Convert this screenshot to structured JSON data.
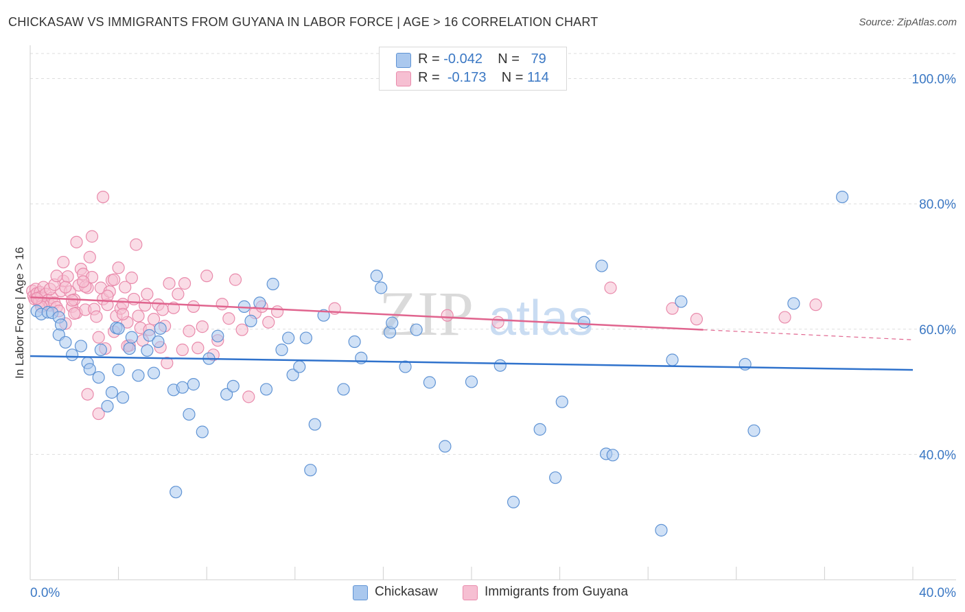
{
  "header": {
    "title": "CHICKASAW VS IMMIGRANTS FROM GUYANA IN LABOR FORCE | AGE > 16 CORRELATION CHART",
    "source": "Source: ZipAtlas.com"
  },
  "legend": {
    "rows": [
      {
        "r_label": "R =",
        "r_value": "-0.042",
        "n_label": "N =",
        "n_value": "79"
      },
      {
        "r_label": "R =",
        "r_value": "-0.173",
        "n_label": "N =",
        "n_value": "114"
      }
    ]
  },
  "watermark": {
    "zip": "ZIP",
    "atlas": "atlas"
  },
  "colors": {
    "blue_fill": "#aac8ee",
    "blue_stroke": "#5f93d4",
    "blue_line": "#2f72cc",
    "pink_fill": "#f6bfd2",
    "pink_stroke": "#e98aab",
    "pink_line": "#e0648e",
    "axis_text": "#3b78c4",
    "grid": "#dddddd"
  },
  "chart_data": {
    "type": "scatter",
    "title": "CHICKASAW VS IMMIGRANTS FROM GUYANA IN LABOR FORCE | AGE > 16 CORRELATION CHART",
    "xlabel": "",
    "ylabel": "In Labor Force | Age > 16",
    "xlim": [
      0,
      40
    ],
    "ylim": [
      20,
      104
    ],
    "x_tick_labels": [
      "0.0%",
      "40.0%"
    ],
    "y_ticks": [
      40,
      60,
      80,
      100
    ],
    "y_tick_labels": [
      "40.0%",
      "60.0%",
      "80.0%",
      "100.0%"
    ],
    "grid": true,
    "legend_position": "top-center",
    "series": [
      {
        "name": "Chickasaw",
        "color": "#5f93d4",
        "trend": {
          "x": [
            0,
            40
          ],
          "y": [
            55.7,
            53.5
          ]
        },
        "points": [
          [
            0.3,
            62.9
          ],
          [
            0.5,
            62.4
          ],
          [
            0.8,
            62.7
          ],
          [
            1.0,
            62.6
          ],
          [
            1.3,
            61.9
          ],
          [
            1.4,
            60.7
          ],
          [
            1.3,
            59.1
          ],
          [
            1.6,
            57.9
          ],
          [
            1.9,
            55.9
          ],
          [
            2.3,
            57.3
          ],
          [
            2.6,
            54.6
          ],
          [
            2.7,
            53.6
          ],
          [
            3.1,
            52.3
          ],
          [
            3.2,
            56.7
          ],
          [
            3.5,
            47.7
          ],
          [
            3.7,
            49.9
          ],
          [
            3.9,
            60.2
          ],
          [
            4.0,
            60.1
          ],
          [
            4.0,
            53.5
          ],
          [
            4.2,
            49.1
          ],
          [
            4.5,
            56.9
          ],
          [
            4.6,
            58.7
          ],
          [
            4.9,
            52.6
          ],
          [
            5.3,
            56.6
          ],
          [
            5.4,
            59.0
          ],
          [
            5.6,
            53.0
          ],
          [
            5.8,
            58.0
          ],
          [
            5.9,
            60.1
          ],
          [
            6.5,
            50.3
          ],
          [
            6.9,
            50.7
          ],
          [
            7.2,
            46.4
          ],
          [
            7.4,
            51.2
          ],
          [
            7.8,
            43.6
          ],
          [
            8.1,
            55.3
          ],
          [
            8.5,
            58.9
          ],
          [
            8.9,
            49.6
          ],
          [
            9.2,
            50.9
          ],
          [
            9.7,
            63.6
          ],
          [
            10.0,
            61.3
          ],
          [
            10.4,
            64.2
          ],
          [
            10.7,
            50.4
          ],
          [
            11.0,
            67.2
          ],
          [
            11.4,
            56.7
          ],
          [
            11.9,
            52.7
          ],
          [
            12.2,
            54.0
          ],
          [
            12.5,
            58.6
          ],
          [
            12.9,
            44.8
          ],
          [
            13.3,
            62.2
          ],
          [
            14.2,
            50.4
          ],
          [
            14.7,
            58.0
          ],
          [
            15.0,
            55.4
          ],
          [
            15.7,
            68.5
          ],
          [
            15.9,
            66.6
          ],
          [
            16.3,
            59.5
          ],
          [
            16.4,
            61.0
          ],
          [
            17.0,
            54.0
          ],
          [
            17.5,
            59.9
          ],
          [
            18.1,
            51.5
          ],
          [
            18.8,
            41.3
          ],
          [
            20.0,
            51.6
          ],
          [
            21.3,
            54.2
          ],
          [
            21.9,
            32.4
          ],
          [
            23.1,
            44.0
          ],
          [
            23.8,
            36.3
          ],
          [
            24.1,
            48.4
          ],
          [
            25.9,
            70.1
          ],
          [
            25.1,
            61.1
          ],
          [
            26.1,
            40.1
          ],
          [
            26.4,
            39.9
          ],
          [
            28.6,
            27.9
          ],
          [
            29.1,
            55.1
          ],
          [
            29.5,
            64.4
          ],
          [
            32.4,
            54.4
          ],
          [
            32.8,
            43.8
          ],
          [
            34.6,
            64.1
          ],
          [
            36.8,
            81.1
          ],
          [
            11.7,
            58.6
          ],
          [
            12.7,
            37.5
          ],
          [
            6.6,
            34.0
          ]
        ]
      },
      {
        "name": "Immigrants from Guyana",
        "color": "#e98aab",
        "trend": {
          "x": [
            0,
            30.5
          ],
          "y": [
            65.1,
            59.9
          ]
        },
        "trend_dashed": {
          "x": [
            30.5,
            40
          ],
          "y": [
            59.9,
            58.3
          ]
        },
        "points": [
          [
            0.1,
            66.1
          ],
          [
            0.15,
            65.3
          ],
          [
            0.2,
            64.8
          ],
          [
            0.25,
            66.4
          ],
          [
            0.3,
            65.7
          ],
          [
            0.35,
            65.0
          ],
          [
            0.4,
            64.4
          ],
          [
            0.45,
            65.9
          ],
          [
            0.5,
            65.2
          ],
          [
            0.55,
            64.1
          ],
          [
            0.6,
            66.7
          ],
          [
            0.7,
            65.6
          ],
          [
            0.8,
            64.6
          ],
          [
            0.9,
            63.8
          ],
          [
            1.0,
            65.0
          ],
          [
            1.1,
            64.2
          ],
          [
            1.2,
            63.5
          ],
          [
            1.3,
            62.9
          ],
          [
            1.4,
            66.1
          ],
          [
            1.5,
            67.7
          ],
          [
            1.6,
            60.9
          ],
          [
            1.7,
            68.4
          ],
          [
            1.8,
            66.0
          ],
          [
            1.9,
            63.6
          ],
          [
            2.0,
            64.7
          ],
          [
            2.1,
            62.6
          ],
          [
            2.2,
            67.0
          ],
          [
            2.3,
            69.6
          ],
          [
            2.4,
            68.8
          ],
          [
            2.5,
            63.1
          ],
          [
            2.6,
            66.6
          ],
          [
            2.7,
            71.5
          ],
          [
            2.8,
            74.8
          ],
          [
            2.9,
            63.2
          ],
          [
            3.0,
            62.0
          ],
          [
            3.1,
            58.7
          ],
          [
            3.2,
            66.6
          ],
          [
            3.3,
            64.8
          ],
          [
            3.4,
            56.9
          ],
          [
            3.5,
            63.9
          ],
          [
            3.6,
            66.0
          ],
          [
            3.7,
            67.8
          ],
          [
            3.8,
            59.6
          ],
          [
            3.9,
            62.1
          ],
          [
            4.0,
            69.8
          ],
          [
            4.1,
            63.3
          ],
          [
            4.2,
            64.0
          ],
          [
            4.3,
            66.7
          ],
          [
            4.4,
            61.1
          ],
          [
            4.5,
            57.4
          ],
          [
            4.6,
            68.2
          ],
          [
            4.7,
            64.8
          ],
          [
            4.8,
            73.5
          ],
          [
            4.9,
            62.1
          ],
          [
            5.0,
            60.2
          ],
          [
            5.1,
            58.2
          ],
          [
            5.2,
            63.8
          ],
          [
            5.3,
            65.6
          ],
          [
            5.4,
            59.9
          ],
          [
            5.6,
            61.6
          ],
          [
            5.8,
            63.9
          ],
          [
            6.0,
            63.1
          ],
          [
            6.1,
            60.5
          ],
          [
            6.3,
            67.3
          ],
          [
            6.5,
            63.4
          ],
          [
            6.7,
            65.6
          ],
          [
            6.9,
            56.7
          ],
          [
            7.0,
            67.3
          ],
          [
            7.2,
            59.7
          ],
          [
            7.4,
            63.6
          ],
          [
            7.6,
            57.0
          ],
          [
            7.8,
            60.4
          ],
          [
            8.0,
            68.5
          ],
          [
            8.3,
            55.9
          ],
          [
            8.5,
            58.2
          ],
          [
            8.7,
            64.0
          ],
          [
            9.0,
            61.7
          ],
          [
            9.3,
            67.9
          ],
          [
            9.6,
            59.9
          ],
          [
            9.9,
            49.2
          ],
          [
            10.2,
            62.6
          ],
          [
            10.5,
            63.6
          ],
          [
            10.8,
            61.1
          ],
          [
            11.2,
            62.8
          ],
          [
            3.3,
            81.1
          ],
          [
            1.5,
            70.7
          ],
          [
            2.1,
            73.9
          ],
          [
            2.5,
            66.8
          ],
          [
            3.8,
            67.9
          ],
          [
            4.2,
            62.4
          ],
          [
            1.9,
            64.6
          ],
          [
            0.9,
            66.4
          ],
          [
            0.5,
            63.6
          ],
          [
            0.3,
            64.9
          ],
          [
            1.1,
            67.1
          ],
          [
            2.8,
            68.3
          ],
          [
            3.5,
            65.3
          ],
          [
            2.0,
            62.5
          ],
          [
            2.6,
            49.6
          ],
          [
            3.1,
            46.5
          ],
          [
            5.9,
            57.1
          ],
          [
            6.2,
            54.6
          ],
          [
            4.4,
            57.3
          ],
          [
            1.6,
            66.7
          ],
          [
            2.4,
            67.6
          ],
          [
            1.2,
            68.5
          ],
          [
            13.8,
            63.3
          ],
          [
            18.9,
            62.2
          ],
          [
            21.2,
            61.1
          ],
          [
            26.3,
            66.6
          ],
          [
            29.1,
            63.3
          ],
          [
            35.6,
            63.9
          ],
          [
            34.2,
            61.9
          ],
          [
            30.2,
            61.6
          ]
        ]
      }
    ]
  }
}
